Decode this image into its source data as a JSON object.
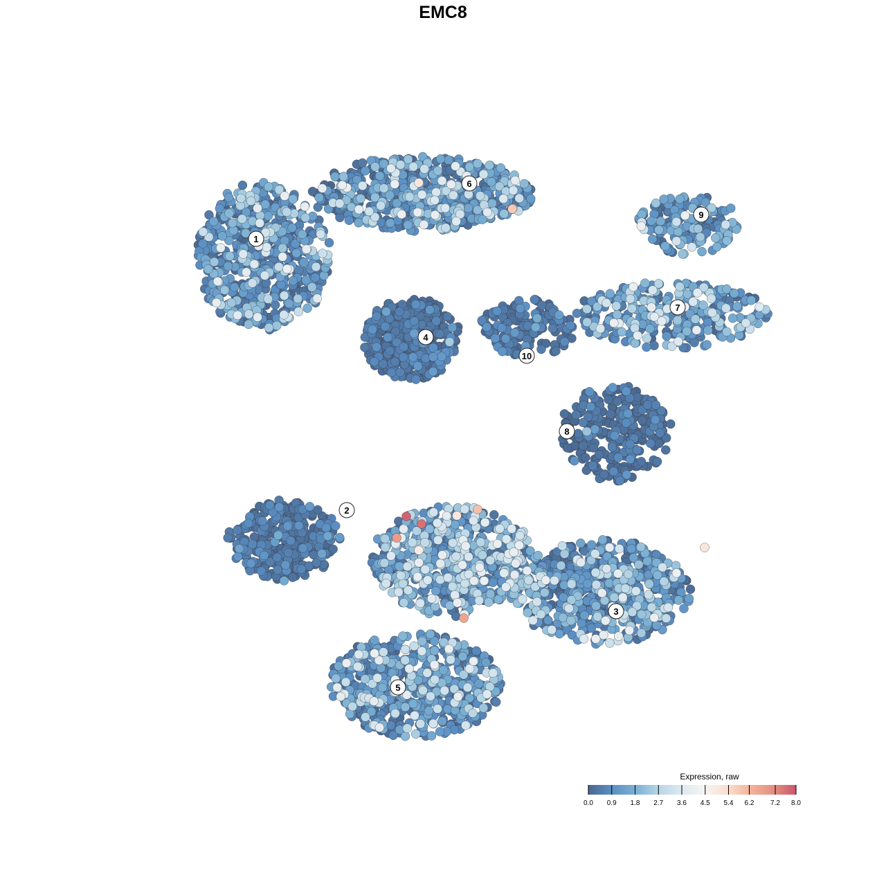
{
  "chart_data": {
    "type": "scatter",
    "title": "EMC8",
    "xlabel": "",
    "ylabel": "",
    "grid": false,
    "axes_visible": false,
    "legend": {
      "title": "Expression, raw",
      "placement": "bottom-right",
      "ticks": [
        "0.0",
        "0.9",
        "1.8",
        "2.7",
        "3.6",
        "4.5",
        "5.4",
        "6.2",
        "7.2",
        "8.0"
      ],
      "tick_values": [
        0.0,
        0.9,
        1.8,
        2.7,
        3.6,
        4.5,
        5.4,
        6.2,
        7.2,
        8.0
      ],
      "range": [
        0,
        8
      ],
      "colors": [
        "#4a6890",
        "#5b8fc4",
        "#7aafd3",
        "#b7d6e6",
        "#dde9f1",
        "#f6f4f2",
        "#fbdccd",
        "#f4b59c",
        "#e38b80",
        "#c9566a"
      ]
    },
    "point_outline_color": "#333333",
    "clusters": [
      {
        "label": "1",
        "center": [
          -5.2,
          5.4
        ],
        "spread": [
          1.8,
          2.0
        ],
        "n": 650,
        "mean_expression": 1.2,
        "label_pos": [
          -5.4,
          5.9
        ]
      },
      {
        "label": "6",
        "center": [
          -0.6,
          7.2
        ],
        "spread": [
          3.0,
          1.0
        ],
        "n": 650,
        "mean_expression": 1.2,
        "label_pos": [
          0.76,
          7.5
        ]
      },
      {
        "label": "4",
        "center": [
          -0.9,
          3.0
        ],
        "spread": [
          1.3,
          1.1
        ],
        "n": 420,
        "mean_expression": 0.3,
        "label_pos": [
          -0.5,
          3.06
        ]
      },
      {
        "label": "10",
        "center": [
          2.4,
          3.3
        ],
        "spread": [
          1.3,
          0.8
        ],
        "n": 160,
        "mean_expression": 0.4,
        "label_pos": [
          2.42,
          2.52
        ]
      },
      {
        "label": "9",
        "center": [
          7.1,
          6.3
        ],
        "spread": [
          1.4,
          0.8
        ],
        "n": 160,
        "mean_expression": 1.3,
        "label_pos": [
          7.46,
          6.6
        ]
      },
      {
        "label": "7",
        "center": [
          6.6,
          3.7
        ],
        "spread": [
          2.6,
          0.9
        ],
        "n": 330,
        "mean_expression": 1.5,
        "label_pos": [
          6.78,
          3.92
        ]
      },
      {
        "label": "8",
        "center": [
          5.0,
          0.3
        ],
        "spread": [
          1.5,
          1.3
        ],
        "n": 300,
        "mean_expression": 0.3,
        "label_pos": [
          3.58,
          0.34
        ]
      },
      {
        "label": "2",
        "center": [
          -4.6,
          -2.8
        ],
        "spread": [
          1.5,
          1.1
        ],
        "n": 330,
        "mean_expression": 0.4,
        "label_pos": [
          -2.78,
          -1.94
        ]
      },
      {
        "label": "3",
        "center": [
          4.6,
          -4.3
        ],
        "spread": [
          2.4,
          1.4
        ],
        "n": 650,
        "mean_expression": 1.3,
        "label_pos": [
          5.0,
          -4.86
        ]
      },
      {
        "label": "5",
        "center": [
          -0.8,
          -7.0
        ],
        "spread": [
          2.3,
          1.4
        ],
        "n": 650,
        "mean_expression": 1.2,
        "label_pos": [
          -1.3,
          -7.06
        ]
      },
      {
        "label": "",
        "center": [
          0.3,
          -3.4
        ],
        "spread": [
          2.2,
          1.5
        ],
        "n": 700,
        "mean_expression": 1.8,
        "label_pos": null
      }
    ],
    "high_expression_points": [
      {
        "x": -1.06,
        "y": -2.12,
        "value": 7.8
      },
      {
        "x": -0.62,
        "y": -2.34,
        "value": 7.6
      },
      {
        "x": -1.34,
        "y": -2.74,
        "value": 6.8
      },
      {
        "x": 0.6,
        "y": -5.06,
        "value": 6.6
      },
      {
        "x": 1.0,
        "y": -1.92,
        "value": 6.0
      },
      {
        "x": 2.0,
        "y": 6.76,
        "value": 5.8
      },
      {
        "x": -0.7,
        "y": 7.52,
        "value": 5.0
      },
      {
        "x": 7.56,
        "y": -3.02,
        "value": 5.0
      },
      {
        "x": 0.4,
        "y": -2.1,
        "value": 5.0
      },
      {
        "x": -0.7,
        "y": -3.1,
        "value": 4.8
      }
    ]
  }
}
